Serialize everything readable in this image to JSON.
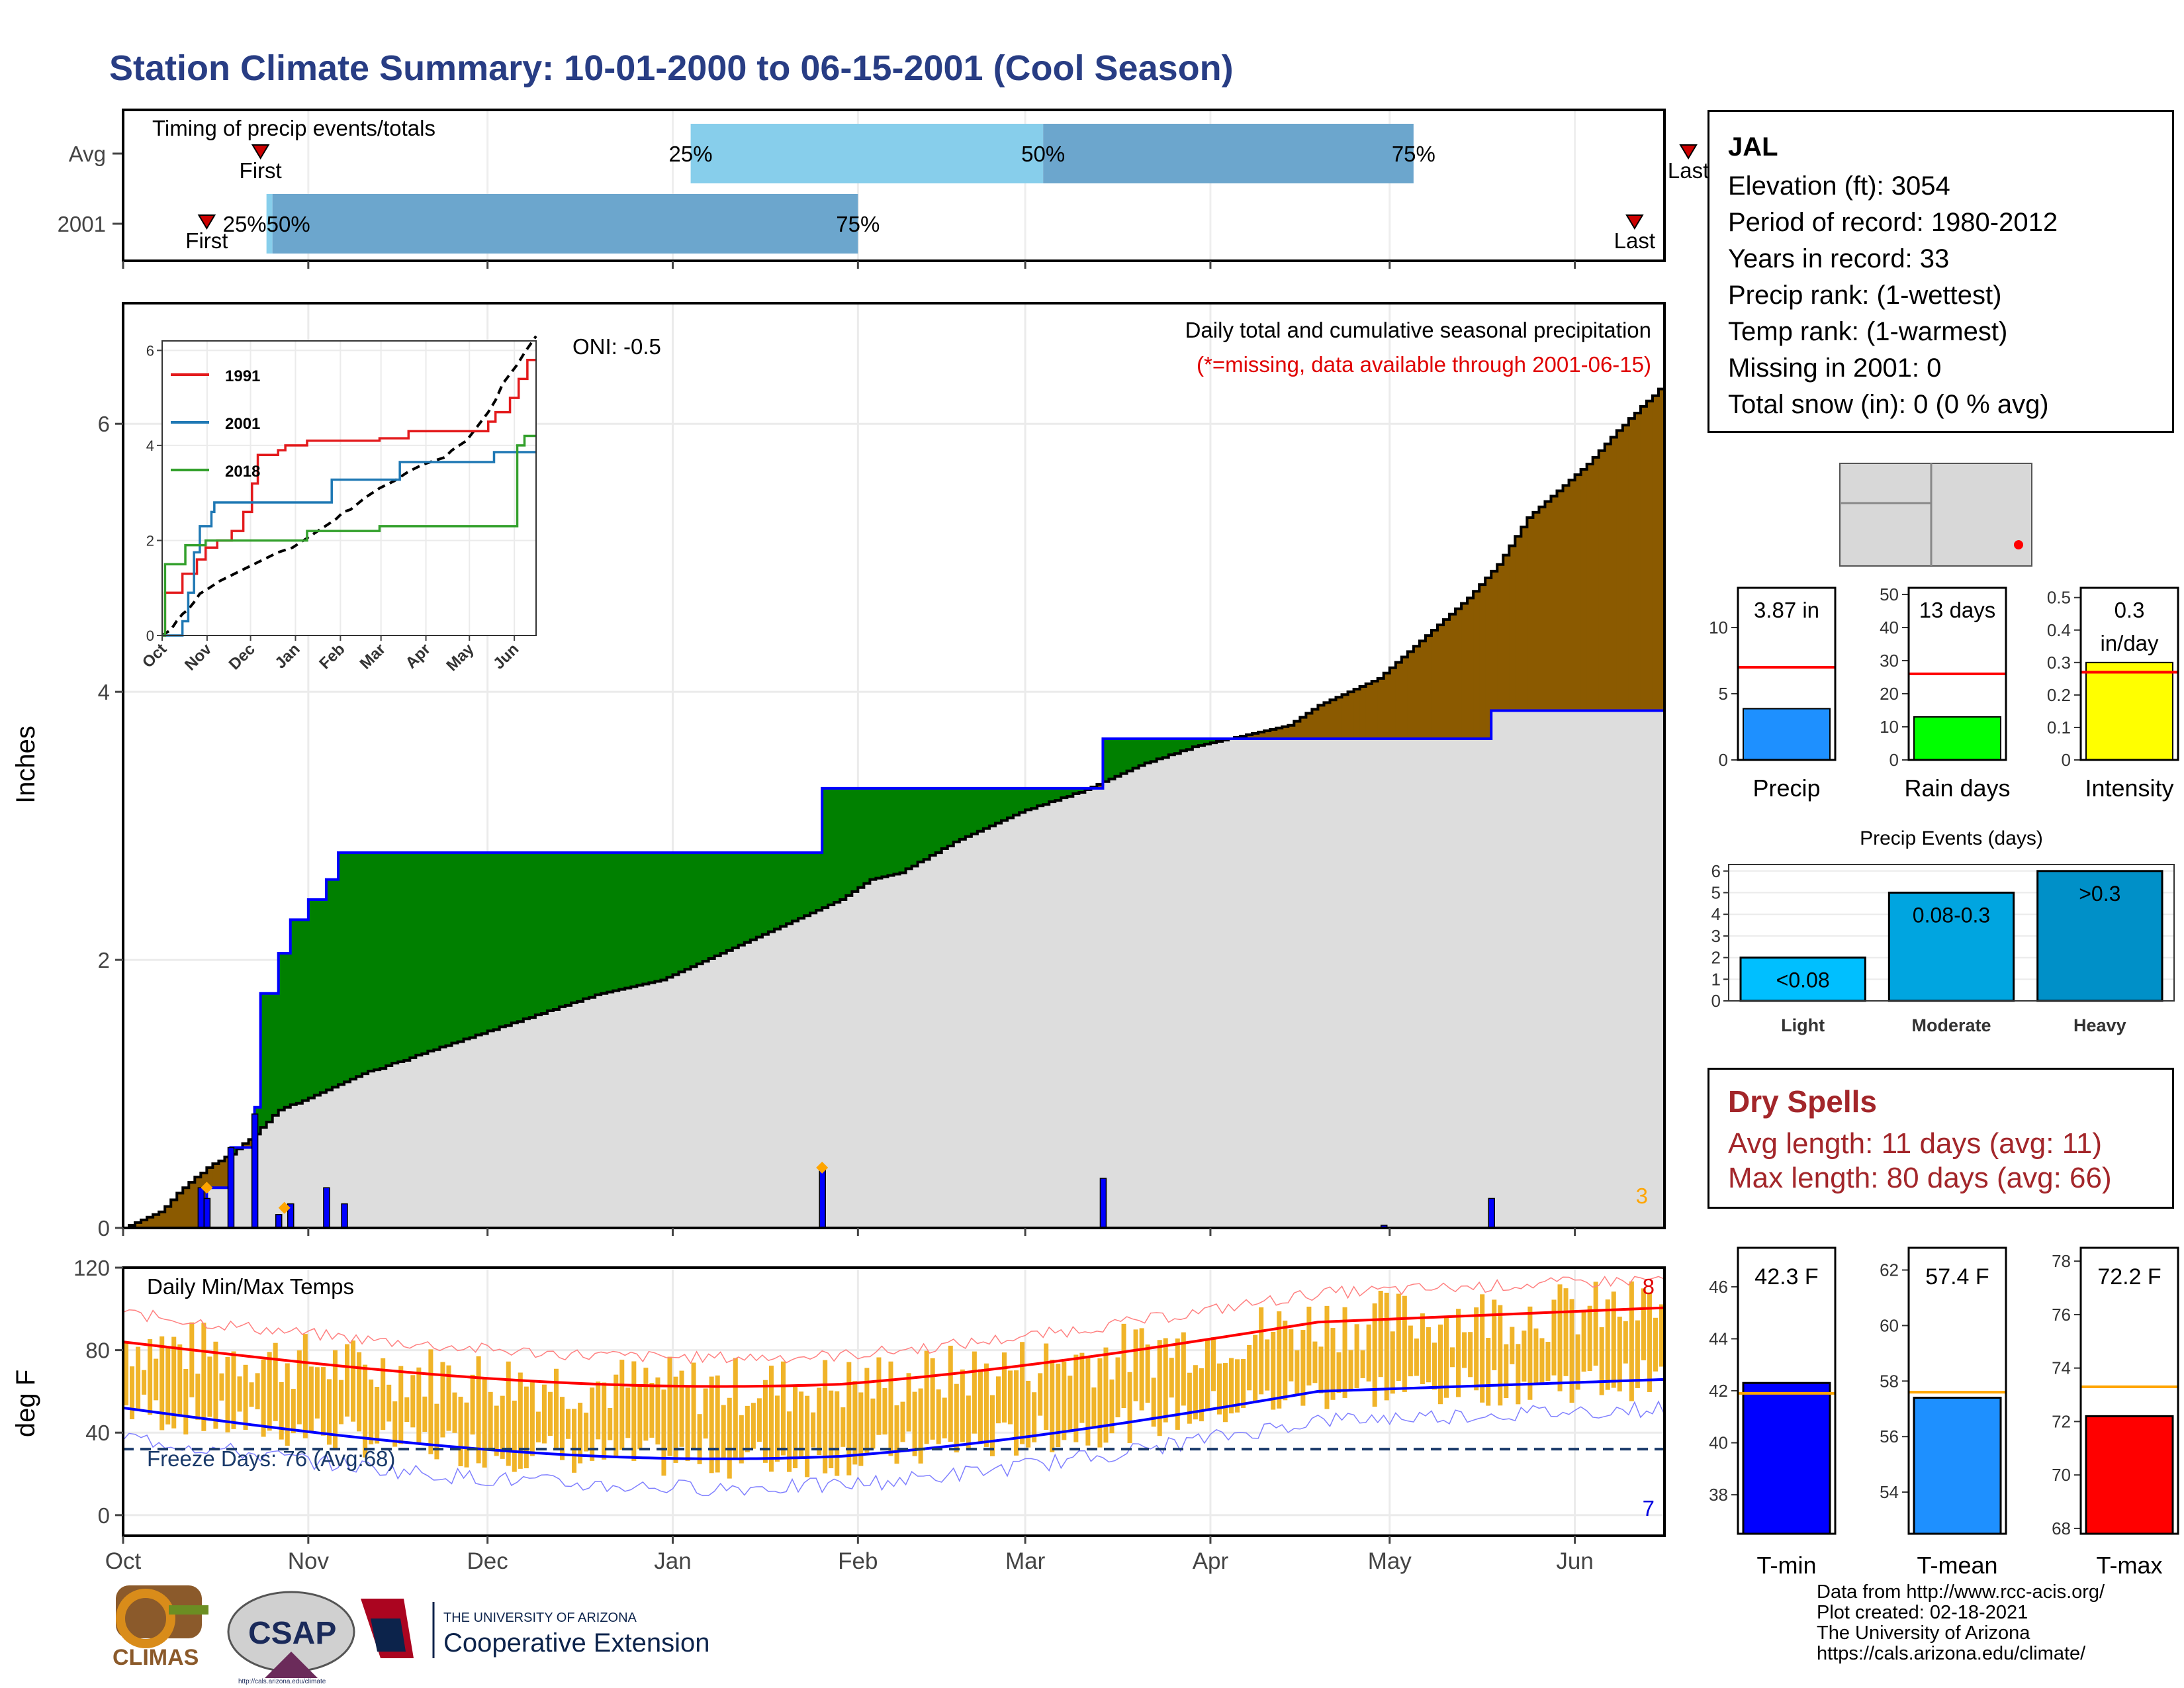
{
  "title": "Station Climate Summary: 10-01-2000 to 06-15-2001 (Cool Season)",
  "colors": {
    "title": "#283d84",
    "dry": "#a3262a",
    "current": "#0000ff",
    "excess": "#8b5a00",
    "deficit": "#008000",
    "normal_fill": "#dddddd"
  },
  "station": {
    "name": "JAL",
    "lines": [
      "Elevation (ft): 3054",
      "Period of record: 1980-2012",
      "Years in record: 33",
      "Precip rank:  (1-wettest)",
      "Temp rank:  (1-warmest)",
      "Missing in 2001: 0",
      "Total snow (in): 0 (0 % avg)"
    ]
  },
  "timing": {
    "label": "Timing of precip events/totals",
    "rows": [
      "Avg",
      "2001"
    ],
    "avg": {
      "first_day": 23,
      "p25": 95,
      "p50": 154,
      "p75": 216,
      "last_day": 262
    },
    "y2001": {
      "first_day": 14,
      "p25": 24,
      "p50": 25,
      "p75": 123,
      "last_day": 253
    },
    "labels": {
      "first": "First",
      "last": "Last",
      "p25": "25%",
      "p50": "50%",
      "p75": "75%",
      "overlap": "25%50%"
    }
  },
  "precip": {
    "ylabel": "Inches",
    "heading": "Daily total and cumulative seasonal precipitation",
    "missing_note": "(*=missing, data available through 2001-06-15)",
    "oni": "ONI: -0.5",
    "corner_count": "3",
    "y_ticks": [
      0,
      2,
      4,
      6
    ],
    "ylim": [
      0,
      6.9
    ],
    "season_days": 258,
    "cum_2001_steps": [
      [
        0,
        0
      ],
      [
        13,
        0.08
      ],
      [
        14,
        0.3
      ],
      [
        18,
        0.6
      ],
      [
        22,
        0.9
      ],
      [
        23,
        1.75
      ],
      [
        26,
        2.05
      ],
      [
        28,
        2.3
      ],
      [
        31,
        2.45
      ],
      [
        34,
        2.6
      ],
      [
        36,
        2.8
      ],
      [
        117,
        3.28
      ],
      [
        164,
        3.65
      ],
      [
        229,
        3.86
      ],
      [
        258,
        3.86
      ]
    ],
    "avg_cum_points": [
      [
        0,
        0
      ],
      [
        6,
        0.12
      ],
      [
        10,
        0.3
      ],
      [
        14,
        0.45
      ],
      [
        18,
        0.55
      ],
      [
        22,
        0.7
      ],
      [
        26,
        0.88
      ],
      [
        30,
        0.95
      ],
      [
        35,
        1.05
      ],
      [
        40,
        1.15
      ],
      [
        50,
        1.3
      ],
      [
        60,
        1.45
      ],
      [
        70,
        1.6
      ],
      [
        80,
        1.75
      ],
      [
        90,
        1.85
      ],
      [
        100,
        2.05
      ],
      [
        110,
        2.25
      ],
      [
        120,
        2.45
      ],
      [
        125,
        2.6
      ],
      [
        130,
        2.65
      ],
      [
        140,
        2.9
      ],
      [
        150,
        3.1
      ],
      [
        160,
        3.25
      ],
      [
        170,
        3.45
      ],
      [
        180,
        3.6
      ],
      [
        190,
        3.7
      ],
      [
        195,
        3.75
      ],
      [
        200,
        3.9
      ],
      [
        210,
        4.1
      ],
      [
        215,
        4.3
      ],
      [
        220,
        4.5
      ],
      [
        225,
        4.7
      ],
      [
        230,
        4.95
      ],
      [
        235,
        5.3
      ],
      [
        240,
        5.5
      ],
      [
        245,
        5.7
      ],
      [
        250,
        5.95
      ],
      [
        258,
        6.3
      ]
    ],
    "daily_bars": [
      [
        13,
        0.3
      ],
      [
        14,
        0.22
      ],
      [
        18,
        0.6
      ],
      [
        22,
        0.85
      ],
      [
        26,
        0.1
      ],
      [
        28,
        0.18
      ],
      [
        34,
        0.3
      ],
      [
        37,
        0.18
      ],
      [
        117,
        0.45
      ],
      [
        164,
        0.37
      ],
      [
        211,
        0.02
      ],
      [
        229,
        0.22
      ]
    ],
    "highlight_points": [
      [
        14,
        0.3
      ],
      [
        27,
        0.15
      ],
      [
        117,
        0.45
      ]
    ]
  },
  "inset": {
    "y_ticks": [
      0,
      2,
      4,
      6
    ],
    "ylim": [
      0,
      6.2
    ],
    "months": [
      "Oct",
      "Nov",
      "Dec",
      "Jan",
      "Feb",
      "Mar",
      "Apr",
      "May",
      "Jun"
    ],
    "series": [
      {
        "name": "1991",
        "color": "#e31a1c",
        "steps": [
          [
            0,
            0
          ],
          [
            2,
            0.9
          ],
          [
            12,
            0.9
          ],
          [
            14,
            1.3
          ],
          [
            24,
            1.6
          ],
          [
            30,
            1.85
          ],
          [
            38,
            2.0
          ],
          [
            48,
            2.2
          ],
          [
            56,
            2.6
          ],
          [
            62,
            3.2
          ],
          [
            66,
            3.8
          ],
          [
            80,
            3.9
          ],
          [
            85,
            4.0
          ],
          [
            100,
            4.1
          ],
          [
            150,
            4.15
          ],
          [
            170,
            4.3
          ],
          [
            225,
            4.5
          ],
          [
            230,
            4.7
          ],
          [
            240,
            5.0
          ],
          [
            246,
            5.4
          ],
          [
            252,
            5.8
          ],
          [
            258,
            5.8
          ]
        ]
      },
      {
        "name": "2001",
        "color": "#1f78b4",
        "steps": [
          [
            0,
            0
          ],
          [
            14,
            0.3
          ],
          [
            18,
            0.9
          ],
          [
            22,
            1.75
          ],
          [
            26,
            2.3
          ],
          [
            34,
            2.6
          ],
          [
            36,
            2.8
          ],
          [
            117,
            3.28
          ],
          [
            164,
            3.65
          ],
          [
            229,
            3.86
          ],
          [
            258,
            3.86
          ]
        ]
      },
      {
        "name": "2018",
        "color": "#33a02c",
        "steps": [
          [
            0,
            0
          ],
          [
            2,
            1.5
          ],
          [
            13,
            1.5
          ],
          [
            16,
            1.9
          ],
          [
            30,
            2.0
          ],
          [
            60,
            2.0
          ],
          [
            100,
            2.2
          ],
          [
            150,
            2.3
          ],
          [
            240,
            2.3
          ],
          [
            245,
            4.0
          ],
          [
            250,
            4.2
          ],
          [
            258,
            4.2
          ]
        ]
      }
    ]
  },
  "temps": {
    "ylabel": "deg F",
    "heading": "Daily Min/Max Temps",
    "freeze": "Freeze Days: 76 (Avg:68)",
    "hot_count": "8",
    "cold_count": "7",
    "y_ticks": [
      0,
      40,
      80,
      120
    ],
    "ylim": [
      -10,
      120
    ],
    "freeze_line": 32,
    "months": [
      "Oct",
      "Nov",
      "Dec",
      "Jan",
      "Feb",
      "Mar",
      "Apr",
      "May",
      "Jun"
    ]
  },
  "axis_months": [
    "Oct",
    "Nov",
    "Dec",
    "Jan",
    "Feb",
    "Mar",
    "Apr",
    "May",
    "Jun"
  ],
  "panels": {
    "precip": {
      "value": "3.87 in",
      "label": "Precip",
      "y_ticks": [
        0,
        5,
        10
      ],
      "ymax": 13,
      "bar": 3.87,
      "avg": 7.0,
      "color": "#1e90ff"
    },
    "rain_days": {
      "value": "13 days",
      "label": "Rain days",
      "y_ticks": [
        0,
        10,
        20,
        30,
        40,
        50
      ],
      "ymax": 52,
      "bar": 13,
      "avg": 26,
      "color": "#00ff00"
    },
    "intensity": {
      "value": "0.3",
      "value2": "in/day",
      "label": "Intensity",
      "y_ticks": [
        0.0,
        0.1,
        0.2,
        0.3,
        0.4,
        0.5
      ],
      "ymax": 0.53,
      "bar": 0.3,
      "avg": 0.27,
      "color": "#ffff00"
    }
  },
  "events": {
    "title": "Precip Events (days)",
    "categories": [
      "Light",
      "Moderate",
      "Heavy"
    ],
    "values": [
      2,
      5,
      6
    ],
    "labels": [
      "<0.08",
      "0.08-0.3",
      ">0.3"
    ],
    "colors": [
      "#00bfff",
      "#00a5e0",
      "#0090c8"
    ],
    "y_ticks": [
      0,
      1,
      2,
      3,
      4,
      5,
      6
    ]
  },
  "dry_spells": {
    "title": "Dry Spells",
    "avg": "Avg length: 11 days (avg: 11)",
    "max": "Max length: 80 days (avg: 66)"
  },
  "temp_panels": {
    "tmin": {
      "value": "42.3 F",
      "label": "T-min",
      "y_ticks": [
        38,
        40,
        42,
        44,
        46
      ],
      "ylim": [
        36.5,
        47.5
      ],
      "bar": 42.3,
      "avg": 41.9,
      "color": "#0000ff"
    },
    "tmean": {
      "value": "57.4 F",
      "label": "T-mean",
      "y_ticks": [
        54,
        56,
        58,
        60,
        62
      ],
      "ylim": [
        52.5,
        62.8
      ],
      "bar": 57.4,
      "avg": 57.6,
      "color": "#1e90ff"
    },
    "tmax": {
      "value": "72.2 F",
      "label": "T-max",
      "y_ticks": [
        68,
        70,
        72,
        74,
        76,
        78
      ],
      "ylim": [
        67.8,
        78.5
      ],
      "bar": 72.2,
      "avg": 73.3,
      "color": "#ff0000"
    }
  },
  "credits": [
    "Data from http://www.rcc-acis.org/",
    "Plot created: 02-18-2021",
    "The University of Arizona",
    "https://cals.arizona.edu/climate/"
  ],
  "logos": {
    "climas": "CLIMAS",
    "csap": "CSAP",
    "csap_url": "http://cals.arizona.edu/climate",
    "ua_top": "THE UNIVERSITY OF ARIZONA",
    "ua_bottom": "Cooperative Extension"
  }
}
